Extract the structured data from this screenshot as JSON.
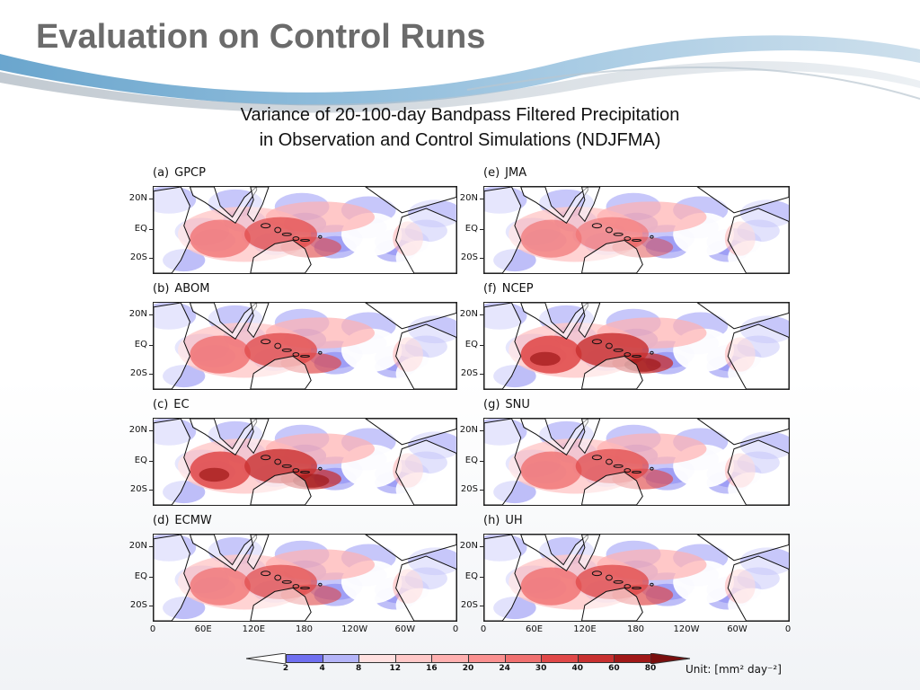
{
  "slide": {
    "title": "Evaluation on Control Runs",
    "subtitle_line1": "Variance of 20-100-day Bandpass Filtered Precipitation",
    "subtitle_line2": "in Observation and Control Simulations (NDJFMA)"
  },
  "panels": [
    {
      "tag": "(a)",
      "name": "GPCP",
      "intensity": 0.55
    },
    {
      "tag": "(b)",
      "name": "ABOM",
      "intensity": 0.7
    },
    {
      "tag": "(c)",
      "name": "EC",
      "intensity": 0.85
    },
    {
      "tag": "(d)",
      "name": "ECMW",
      "intensity": 0.5
    },
    {
      "tag": "(e)",
      "name": "JMA",
      "intensity": 0.25
    },
    {
      "tag": "(f)",
      "name": "NCEP",
      "intensity": 0.9
    },
    {
      "tag": "(g)",
      "name": "SNU",
      "intensity": 0.6
    },
    {
      "tag": "(h)",
      "name": "UH",
      "intensity": 0.7
    }
  ],
  "lat_labels": [
    "20N",
    "EQ",
    "20S"
  ],
  "lon_labels": [
    "0",
    "60E",
    "120E",
    "180",
    "120W",
    "60W",
    "0"
  ],
  "colorbar": {
    "levels": [
      "2",
      "4",
      "8",
      "12",
      "16",
      "20",
      "24",
      "30",
      "40",
      "60",
      "80"
    ],
    "colors": [
      "#ffffff",
      "#6f6ff0",
      "#b4b4f8",
      "#ffe0e0",
      "#ffc8c8",
      "#ffb0b0",
      "#fa9090",
      "#f07070",
      "#e04848",
      "#c83030",
      "#a01818",
      "#7a0e0e"
    ],
    "unit": "Unit: [mm² day⁻²]"
  }
}
